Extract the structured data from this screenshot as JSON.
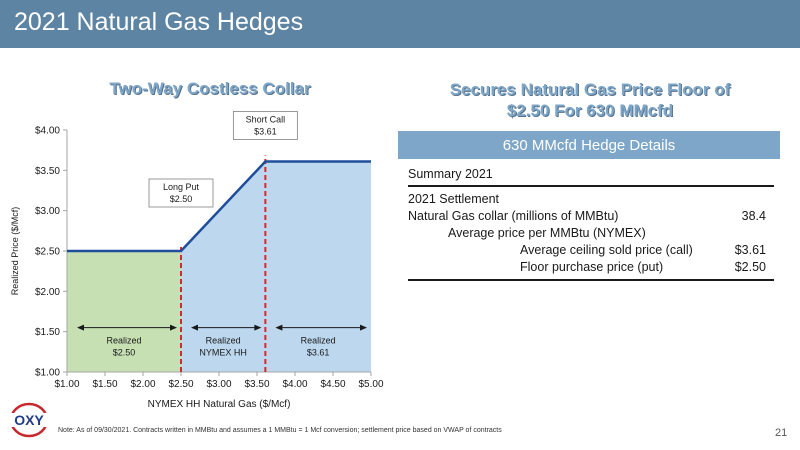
{
  "slide": {
    "title": "2021 Natural Gas Hedges",
    "chart_title": "Two-Way Costless Collar",
    "right_title_line1": "Secures Natural Gas Price Floor of",
    "right_title_line2": "$2.50 For 630 MMcfd",
    "note": "Note: As of 09/30/2021. Contracts written in MMBtu and assumes a 1 MMBtu = 1 Mcf conversion; settlement price based on VWAP of contracts",
    "page_number": "21",
    "logo_text": "OXY"
  },
  "hedge_table": {
    "header": "630 MMcfd Hedge Details",
    "summary_label": "Summary 2021",
    "settlement_label": "2021 Settlement",
    "collar_label": "Natural Gas collar (millions of MMBtu)",
    "collar_value": "38.4",
    "avg_price_label": "Average price per MMBtu (NYMEX)",
    "ceiling_label": "Average ceiling sold price (call)",
    "ceiling_value": "$3.61",
    "floor_label": "Floor purchase price (put)",
    "floor_value": "$2.50"
  },
  "chart_data": {
    "type": "line",
    "title": "",
    "xlabel": "NYMEX HH Natural Gas ($/Mcf)",
    "ylabel": "Realized Price ($/Mcf)",
    "xlim": [
      1.0,
      5.0
    ],
    "ylim": [
      1.0,
      4.0
    ],
    "x_ticks": [
      1.0,
      1.5,
      2.0,
      2.5,
      3.0,
      3.5,
      4.0,
      4.5,
      5.0
    ],
    "x_tick_labels": [
      "$1.00",
      "$1.50",
      "$2.00",
      "$2.50",
      "$3.00",
      "$3.50",
      "$4.00",
      "$4.50",
      "$5.00"
    ],
    "y_ticks": [
      1.0,
      1.5,
      2.0,
      2.5,
      3.0,
      3.5,
      4.0
    ],
    "y_tick_labels": [
      "$1.00",
      "$1.50",
      "$2.00",
      "$2.50",
      "$3.00",
      "$3.50",
      "$4.00"
    ],
    "series": [
      {
        "x": [
          1.0,
          2.5,
          3.61,
          5.0
        ],
        "y": [
          2.5,
          2.5,
          3.61,
          3.61
        ]
      }
    ],
    "put_strike": 2.5,
    "call_strike": 3.61,
    "annotations": [
      {
        "line1": "Long Put",
        "line2": "$2.50",
        "x": 2.5,
        "y": 2.5
      },
      {
        "line1": "Short Call",
        "line2": "$3.61",
        "x": 3.61,
        "y": 3.61
      }
    ],
    "regions": [
      {
        "line1": "Realized",
        "line2": "$2.50",
        "x_from": 1.0,
        "x_to": 2.5,
        "color": "#c6e0b4"
      },
      {
        "line1": "Realized",
        "line2": "NYMEX HH",
        "x_from": 2.5,
        "x_to": 3.61,
        "color": "#bdd7ee"
      },
      {
        "line1": "Realized",
        "line2": "$3.61",
        "x_from": 3.61,
        "x_to": 5.0,
        "color": "#bdd7ee"
      }
    ],
    "colors": {
      "line": "#1f4e9a",
      "strike_line": "#d6282c",
      "green_fill": "#c6e0b4",
      "blue_fill": "#bdd7ee"
    },
    "grid": false
  }
}
